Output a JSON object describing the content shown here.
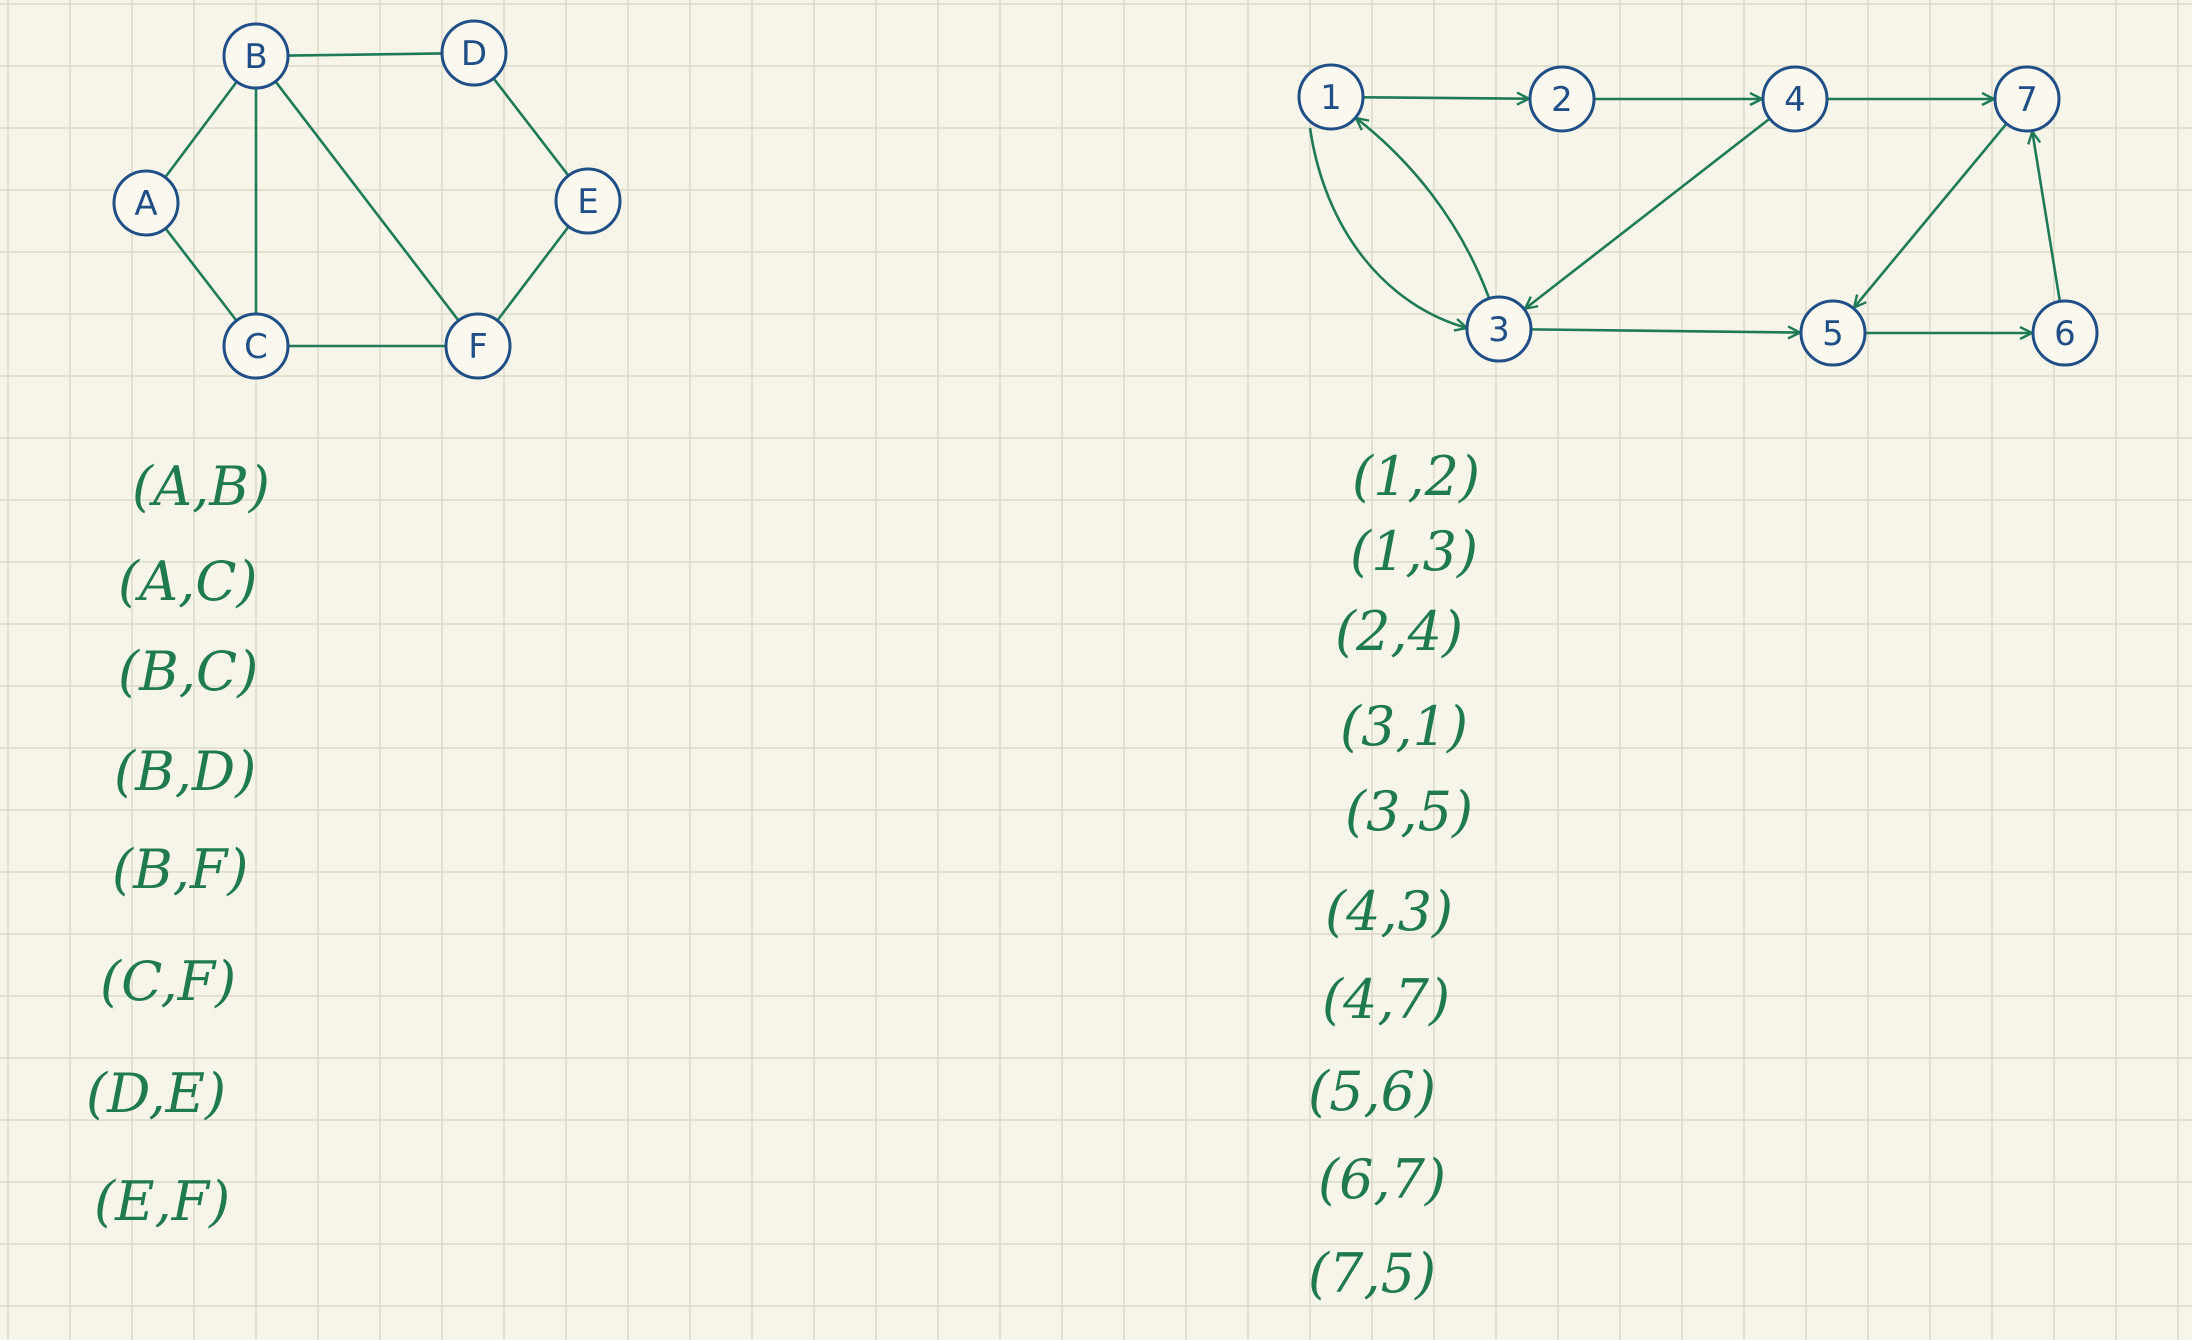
{
  "colors": {
    "paper": "#f7f5ea",
    "grid": "#dcd9c6",
    "node_stroke": "#1f4f86",
    "edge": "#1e7a57",
    "handwriting": "#1f7a4d"
  },
  "undirected_graph": {
    "nodes": [
      "A",
      "B",
      "C",
      "D",
      "E",
      "F"
    ],
    "edges": [
      [
        "A",
        "B"
      ],
      [
        "A",
        "C"
      ],
      [
        "B",
        "C"
      ],
      [
        "B",
        "D"
      ],
      [
        "B",
        "F"
      ],
      [
        "C",
        "F"
      ],
      [
        "D",
        "E"
      ],
      [
        "E",
        "F"
      ]
    ],
    "edge_list": [
      "(A,B)",
      "(A,C)",
      "(B,C)",
      "(B,D)",
      "(B,F)",
      "(C,F)",
      "(D,E)",
      "(E,F)"
    ]
  },
  "directed_graph": {
    "nodes": [
      "1",
      "2",
      "3",
      "4",
      "5",
      "6",
      "7"
    ],
    "edges": [
      [
        "1",
        "2"
      ],
      [
        "1",
        "3"
      ],
      [
        "2",
        "4"
      ],
      [
        "3",
        "1"
      ],
      [
        "3",
        "5"
      ],
      [
        "4",
        "3"
      ],
      [
        "4",
        "7"
      ],
      [
        "5",
        "6"
      ],
      [
        "6",
        "7"
      ],
      [
        "7",
        "5"
      ]
    ],
    "edge_list": [
      "(1,2)",
      "(1,3)",
      "(2,4)",
      "(3,1)",
      "(3,5)",
      "(4,3)",
      "(4,7)",
      "(5,6)",
      "(6,7)",
      "(7,5)"
    ]
  }
}
